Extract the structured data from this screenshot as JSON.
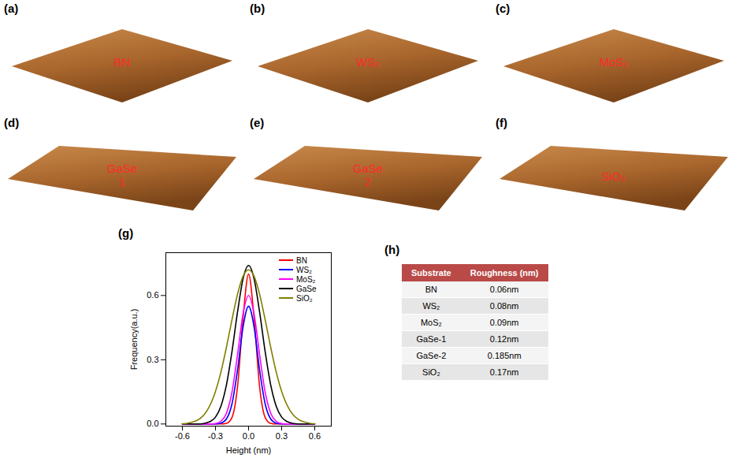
{
  "panels": [
    {
      "letter": "(a)",
      "label": "BN"
    },
    {
      "letter": "(b)",
      "label": "WS₂"
    },
    {
      "letter": "(c)",
      "label": "MoS₂"
    },
    {
      "letter": "(d)",
      "label": "GaSe 1"
    },
    {
      "letter": "(e)",
      "label": "GaSe 2"
    },
    {
      "letter": "(f)",
      "label": "SiO₂"
    }
  ],
  "chart_data": {
    "letter": "(g)",
    "type": "line",
    "x_label": "Height (nm)",
    "y_label": "Frequency(a.u.)",
    "x": [
      -0.6,
      -0.55,
      -0.5,
      -0.45,
      -0.4,
      -0.35,
      -0.3,
      -0.25,
      -0.2,
      -0.15,
      -0.1,
      -0.05,
      0,
      0.05,
      0.1,
      0.15,
      0.2,
      0.25,
      0.3,
      0.35,
      0.4,
      0.45,
      0.5,
      0.55,
      0.6
    ],
    "series": [
      {
        "name": "BN",
        "color": "#ff0000",
        "values": [
          0,
          0,
          0,
          0,
          0,
          0,
          0,
          0,
          0.003,
          0.031,
          0.174,
          0.495,
          0.7,
          0.495,
          0.174,
          0.031,
          0.003,
          0,
          0,
          0,
          0,
          0,
          0,
          0,
          0
        ]
      },
      {
        "name": "WS₂",
        "color": "#0000ff",
        "values": [
          0,
          0,
          0,
          0,
          0,
          0,
          0,
          0.004,
          0.024,
          0.095,
          0.252,
          0.453,
          0.55,
          0.453,
          0.252,
          0.095,
          0.024,
          0.004,
          0,
          0,
          0,
          0,
          0,
          0,
          0
        ]
      },
      {
        "name": "MoS₂",
        "color": "#ff00ff",
        "values": [
          0,
          0,
          0,
          0,
          0,
          0,
          0.002,
          0.013,
          0.051,
          0.15,
          0.324,
          0.514,
          0.6,
          0.514,
          0.324,
          0.15,
          0.051,
          0.013,
          0.002,
          0,
          0,
          0,
          0,
          0,
          0
        ]
      },
      {
        "name": "GaSe",
        "color": "#000000",
        "values": [
          0,
          0,
          0,
          0,
          0.003,
          0.011,
          0.032,
          0.084,
          0.184,
          0.339,
          0.523,
          0.678,
          0.74,
          0.678,
          0.523,
          0.339,
          0.184,
          0.084,
          0.032,
          0.011,
          0.003,
          0,
          0,
          0,
          0
        ]
      },
      {
        "name": "SiO₂",
        "color": "#808000",
        "values": [
          0.001,
          0.004,
          0.01,
          0.022,
          0.045,
          0.087,
          0.152,
          0.244,
          0.36,
          0.488,
          0.606,
          0.69,
          0.72,
          0.69,
          0.606,
          0.488,
          0.36,
          0.244,
          0.152,
          0.087,
          0.045,
          0.022,
          0.01,
          0.004,
          0.001
        ]
      }
    ],
    "xlim": [
      -0.75,
      0.75
    ],
    "xticks": [
      -0.6,
      -0.3,
      {
        "value": 0,
        "label": "0.0"
      },
      0.3,
      0.6
    ],
    "ylim": [
      -0.01,
      0.8
    ],
    "yticks": [
      {
        "value": 0,
        "label": "0.0"
      },
      0.3,
      0.6
    ],
    "legend": "upper right"
  },
  "table": {
    "letter": "(h)",
    "header": [
      "Substrate",
      "Roughness (nm)"
    ],
    "rows": [
      [
        "BN",
        "0.06nm"
      ],
      [
        "WS₂",
        "0.08nm"
      ],
      [
        "MoS₂",
        "0.09nm"
      ],
      [
        "GaSe-1",
        "0.12nm"
      ],
      [
        "GaSe-2",
        "0.185nm"
      ],
      [
        "SiO₂",
        "0.17nm"
      ]
    ]
  }
}
